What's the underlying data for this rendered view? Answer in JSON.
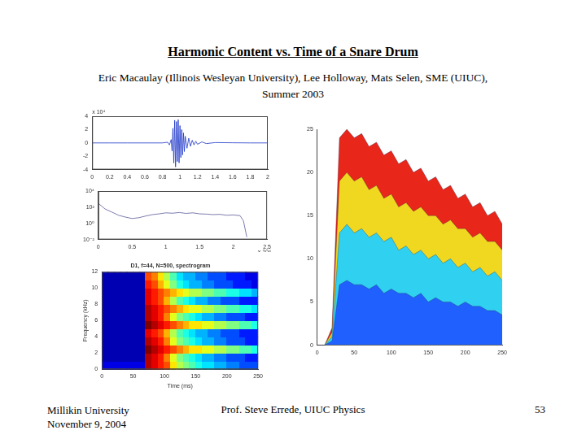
{
  "slide": {
    "title": "Harmonic Content vs. Time of a Snare Drum",
    "credits": [
      "Eric Macaulay (Illinois Wesleyan University), Lee Holloway, Mats Selen, SME (UIUC),",
      "Summer 2003"
    ],
    "footer": {
      "left": [
        "Millikin University",
        "November 9, 2004"
      ],
      "center": "Prof. Steve Errede, UIUC Physics",
      "page": 53
    }
  },
  "chart_data": [
    {
      "type": "line",
      "annotation": "x 10⁴",
      "grid": false,
      "x": [
        0,
        0.2,
        0.4,
        0.6,
        0.8,
        0.86,
        0.88,
        0.9,
        0.91,
        0.92,
        0.93,
        0.94,
        0.95,
        0.96,
        0.97,
        0.98,
        0.99,
        1.0,
        1.01,
        1.02,
        1.03,
        1.04,
        1.05,
        1.06,
        1.08,
        1.1,
        1.12,
        1.14,
        1.16,
        1.18,
        1.2,
        1.25,
        1.3,
        1.4,
        1.6,
        1.8,
        2.0
      ],
      "values": [
        0,
        0,
        0,
        0,
        0,
        0.1,
        -0.3,
        0.5,
        -1.2,
        2.2,
        -3.0,
        3.4,
        -3.6,
        3.2,
        -2.8,
        3.5,
        -3.0,
        2.6,
        -2.2,
        2.0,
        -1.8,
        1.5,
        -1.3,
        1.0,
        -0.8,
        0.7,
        -0.5,
        0.4,
        -0.3,
        0.25,
        -0.2,
        0.15,
        -0.1,
        0.05,
        0.02,
        0,
        0
      ],
      "color": "#1a33c8",
      "xlim": [
        0,
        2
      ],
      "xticks": [
        0,
        0.2,
        0.4,
        0.6,
        0.8,
        1,
        1.2,
        1.4,
        1.6,
        1.8,
        2
      ],
      "ylim": [
        -4,
        4
      ],
      "yticks": [
        -4,
        -2,
        0,
        2,
        4
      ]
    },
    {
      "type": "line",
      "annotation": "x 10⁴",
      "grid": false,
      "log": "y",
      "x": [
        0,
        0.1,
        0.2,
        0.3,
        0.4,
        0.5,
        0.6,
        0.7,
        0.8,
        0.9,
        1.0,
        1.1,
        1.2,
        1.3,
        1.4,
        1.5,
        1.6,
        1.7,
        1.8,
        1.9,
        2.0,
        2.1,
        2.15,
        2.2
      ],
      "values": [
        300,
        60,
        25,
        10,
        6,
        4,
        5,
        8,
        12,
        15,
        20,
        18,
        22,
        17,
        20,
        15,
        14,
        12,
        13,
        10,
        11,
        9,
        2,
        0.02
      ],
      "color": "#5a5a9a",
      "xlim": [
        0,
        2.5
      ],
      "xticks": [
        0,
        0.5,
        1,
        1.5,
        2,
        2.5
      ],
      "ylim": [
        0.01,
        10000
      ],
      "yticks": [
        {
          "value": 0.01,
          "label": "10⁻²"
        },
        {
          "value": 1,
          "label": "10⁰"
        },
        {
          "value": 100,
          "label": "10²"
        },
        {
          "value": 10000,
          "label": "10⁴"
        }
      ]
    },
    {
      "type": "heatmap",
      "title": "D1, f=44, N=500, spectrogram",
      "x_label": "Time (ms)",
      "y_label": "Frequency (kHz)",
      "x_bins": [
        0,
        10,
        20,
        30,
        40,
        50,
        60,
        70,
        80,
        90,
        100,
        110,
        120,
        130,
        140,
        150,
        160,
        170,
        180,
        190,
        200,
        210,
        220,
        230,
        240,
        250
      ],
      "y_bins": [
        0,
        1,
        2,
        3,
        4,
        5,
        6,
        7,
        8,
        9,
        10,
        11,
        12
      ],
      "xlim": [
        0,
        250
      ],
      "xticks": [
        0,
        50,
        100,
        150,
        200,
        250
      ],
      "ylim": [
        0,
        12
      ],
      "yticks": [
        0,
        2,
        4,
        6,
        8,
        10,
        12
      ],
      "color_range": [
        0,
        1
      ],
      "cells": [
        [
          0.1,
          0.1,
          0.1,
          0.1,
          0.1,
          0.1,
          0.1,
          0.95,
          0.9,
          0.85,
          0.8,
          0.65,
          0.55,
          0.5,
          0.45,
          0.4,
          0.35,
          0.35,
          0.3,
          0.3,
          0.25,
          0.25,
          0.2,
          0.2,
          0.2
        ],
        [
          0.05,
          0.05,
          0.05,
          0.05,
          0.05,
          0.05,
          0.05,
          0.95,
          0.9,
          0.85,
          0.75,
          0.6,
          0.5,
          0.45,
          0.4,
          0.35,
          0.3,
          0.3,
          0.25,
          0.25,
          0.2,
          0.2,
          0.2,
          0.15,
          0.15
        ],
        [
          0.05,
          0.05,
          0.05,
          0.05,
          0.05,
          0.05,
          0.05,
          1.0,
          0.95,
          0.9,
          0.85,
          0.8,
          0.75,
          0.7,
          0.65,
          0.65,
          0.6,
          0.6,
          0.55,
          0.55,
          0.5,
          0.5,
          0.45,
          0.45,
          0.4
        ],
        [
          0.05,
          0.05,
          0.05,
          0.05,
          0.05,
          0.05,
          0.05,
          0.95,
          0.9,
          0.85,
          0.75,
          0.6,
          0.5,
          0.45,
          0.4,
          0.35,
          0.3,
          0.3,
          0.25,
          0.25,
          0.2,
          0.2,
          0.2,
          0.15,
          0.15
        ],
        [
          0.05,
          0.05,
          0.05,
          0.05,
          0.05,
          0.05,
          0.05,
          0.9,
          0.85,
          0.8,
          0.7,
          0.55,
          0.45,
          0.4,
          0.35,
          0.3,
          0.3,
          0.25,
          0.25,
          0.2,
          0.2,
          0.2,
          0.15,
          0.15,
          0.15
        ],
        [
          0.05,
          0.05,
          0.05,
          0.05,
          0.05,
          0.05,
          0.05,
          1.0,
          0.95,
          0.9,
          0.85,
          0.8,
          0.75,
          0.7,
          0.65,
          0.65,
          0.6,
          0.6,
          0.55,
          0.55,
          0.5,
          0.5,
          0.45,
          0.45,
          0.4
        ],
        [
          0.05,
          0.05,
          0.05,
          0.05,
          0.05,
          0.05,
          0.05,
          0.95,
          0.9,
          0.85,
          0.75,
          0.6,
          0.5,
          0.45,
          0.4,
          0.35,
          0.3,
          0.3,
          0.25,
          0.25,
          0.2,
          0.2,
          0.2,
          0.15,
          0.15
        ],
        [
          0.05,
          0.05,
          0.05,
          0.05,
          0.05,
          0.05,
          0.05,
          0.95,
          0.9,
          0.85,
          0.8,
          0.75,
          0.7,
          0.65,
          0.6,
          0.6,
          0.55,
          0.55,
          0.5,
          0.5,
          0.45,
          0.45,
          0.4,
          0.4,
          0.35
        ],
        [
          0.05,
          0.05,
          0.05,
          0.05,
          0.05,
          0.05,
          0.05,
          0.9,
          0.85,
          0.8,
          0.7,
          0.55,
          0.45,
          0.4,
          0.35,
          0.3,
          0.3,
          0.25,
          0.25,
          0.2,
          0.2,
          0.2,
          0.15,
          0.15,
          0.15
        ],
        [
          0.05,
          0.05,
          0.05,
          0.05,
          0.05,
          0.05,
          0.05,
          0.9,
          0.85,
          0.8,
          0.75,
          0.7,
          0.65,
          0.6,
          0.55,
          0.55,
          0.5,
          0.5,
          0.45,
          0.45,
          0.4,
          0.4,
          0.35,
          0.35,
          0.3
        ],
        [
          0.05,
          0.05,
          0.05,
          0.05,
          0.05,
          0.05,
          0.05,
          0.85,
          0.8,
          0.7,
          0.6,
          0.5,
          0.4,
          0.35,
          0.3,
          0.3,
          0.25,
          0.25,
          0.2,
          0.2,
          0.2,
          0.15,
          0.15,
          0.15,
          0.1
        ],
        [
          0.05,
          0.05,
          0.05,
          0.05,
          0.05,
          0.05,
          0.05,
          0.8,
          0.75,
          0.65,
          0.55,
          0.45,
          0.35,
          0.3,
          0.3,
          0.25,
          0.25,
          0.2,
          0.2,
          0.2,
          0.15,
          0.15,
          0.15,
          0.1,
          0.1
        ]
      ]
    },
    {
      "type": "area",
      "grid": false,
      "x": [
        0,
        10,
        20,
        30,
        40,
        50,
        60,
        70,
        80,
        90,
        100,
        110,
        120,
        130,
        140,
        150,
        160,
        170,
        180,
        190,
        200,
        210,
        220,
        230,
        240,
        250
      ],
      "series": [
        {
          "color": "#e8261a",
          "values": [
            0,
            0,
            2,
            24,
            25,
            24,
            24.5,
            23,
            23.5,
            22,
            22.5,
            21,
            21.5,
            20,
            20.5,
            19,
            19.5,
            18,
            18.5,
            17,
            17.5,
            16,
            16.5,
            15,
            15.5,
            14
          ]
        },
        {
          "color": "#f0d820",
          "values": [
            0,
            0,
            1.5,
            19,
            20,
            19,
            19.5,
            18,
            18.5,
            17,
            17.5,
            16,
            16.5,
            15.5,
            16,
            15,
            15,
            14,
            14.5,
            13.5,
            13.5,
            12.5,
            13,
            12,
            12,
            11
          ]
        },
        {
          "color": "#30d0f0",
          "values": [
            0,
            0,
            1,
            13,
            14,
            13,
            13.5,
            12.5,
            13,
            12,
            12.5,
            11,
            11.5,
            10.5,
            11,
            10,
            10.5,
            9.5,
            10,
            9,
            9.5,
            8.5,
            9,
            8,
            8.5,
            7.5
          ]
        },
        {
          "color": "#2060ff",
          "values": [
            0,
            0,
            0.5,
            7,
            7.5,
            7,
            7,
            6.5,
            7,
            6,
            6.5,
            6,
            6,
            5.5,
            6,
            5,
            5.5,
            5,
            5,
            4.5,
            5,
            4.5,
            4.5,
            4,
            4,
            3.5
          ]
        }
      ],
      "xlim": [
        0,
        250
      ],
      "xticks": [
        0,
        50,
        100,
        150,
        200,
        250
      ],
      "ylim": [
        0,
        25
      ],
      "yticks": [
        0,
        5,
        10,
        15,
        20,
        25
      ]
    }
  ]
}
